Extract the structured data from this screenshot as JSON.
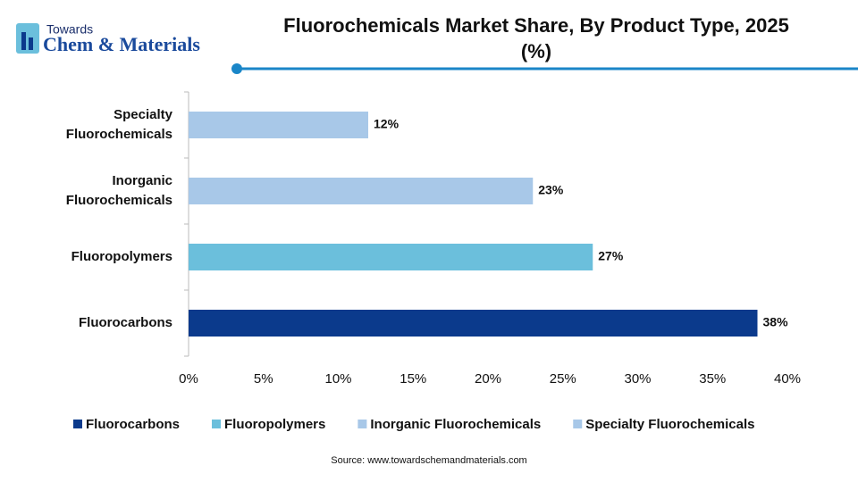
{
  "logo": {
    "line1": "Towards",
    "line2": "Chem & Materials"
  },
  "chart_data": {
    "type": "hbar",
    "title": "Fluorochemicals Market Share, By Product Type, 2025 (%)",
    "categories": [
      "Fluorocarbons",
      "Fluoropolymers",
      "Inorganic Fluorochemicals",
      "Specialty Fluorochemicals"
    ],
    "values": [
      38,
      27,
      23,
      12
    ],
    "value_labels": [
      "38%",
      "27%",
      "23%",
      "12%"
    ],
    "colors": [
      "#0b3a8c",
      "#6bbfdc",
      "#a8c8e8",
      "#a8c8e8"
    ],
    "xlim": [
      0,
      40
    ],
    "xticks": [
      {
        "value": 0,
        "label": "0%"
      },
      {
        "value": 5,
        "label": "5%"
      },
      {
        "value": 10,
        "label": "10%"
      },
      {
        "value": 15,
        "label": "15%"
      },
      {
        "value": 20,
        "label": "20%"
      },
      {
        "value": 25,
        "label": "25%"
      },
      {
        "value": 30,
        "label": "30%"
      },
      {
        "value": 35,
        "label": "35%"
      },
      {
        "value": 40,
        "label": "40%"
      }
    ],
    "source": "Source: www.towardschemandmaterials.com"
  }
}
